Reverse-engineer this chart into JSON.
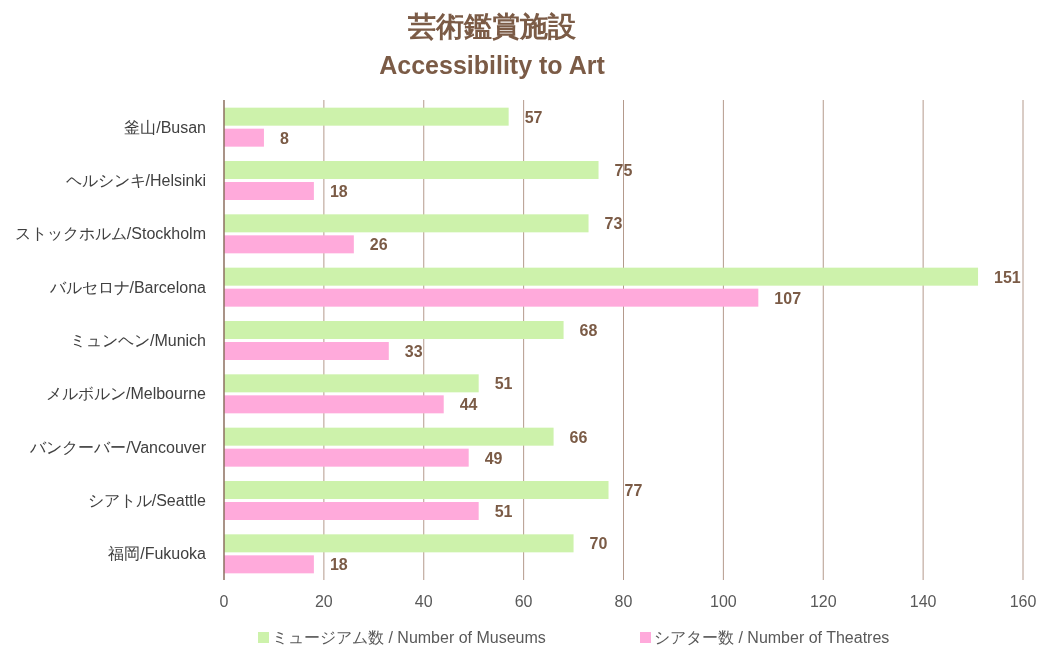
{
  "chart_data": {
    "type": "bar",
    "orientation": "horizontal",
    "title": "芸術鑑賞施設",
    "subtitle": "Accessibility to Art",
    "categories": [
      "釜山/Busan",
      "ヘルシンキ/Helsinki",
      "ストックホルム/Stockholm",
      "バルセロナ/Barcelona",
      "ミュンヘン/Munich",
      "メルボルン/Melbourne",
      "バンクーバー/Vancouver",
      "シアトル/Seattle",
      "福岡/Fukuoka"
    ],
    "series": [
      {
        "name": "ミュージアム数 / Number of Museums",
        "color": "#cdf2ab",
        "values": [
          57,
          75,
          73,
          151,
          68,
          51,
          66,
          77,
          70
        ]
      },
      {
        "name": "シアター数 / Number of Theatres",
        "color": "#ffaadb",
        "values": [
          8,
          18,
          26,
          107,
          33,
          44,
          49,
          51,
          18
        ]
      }
    ],
    "xlim": [
      0,
      160
    ],
    "xticks": [
      0,
      20,
      40,
      60,
      80,
      100,
      120,
      140,
      160
    ],
    "grid": "x",
    "legend": "bottom",
    "data_labels": true
  }
}
